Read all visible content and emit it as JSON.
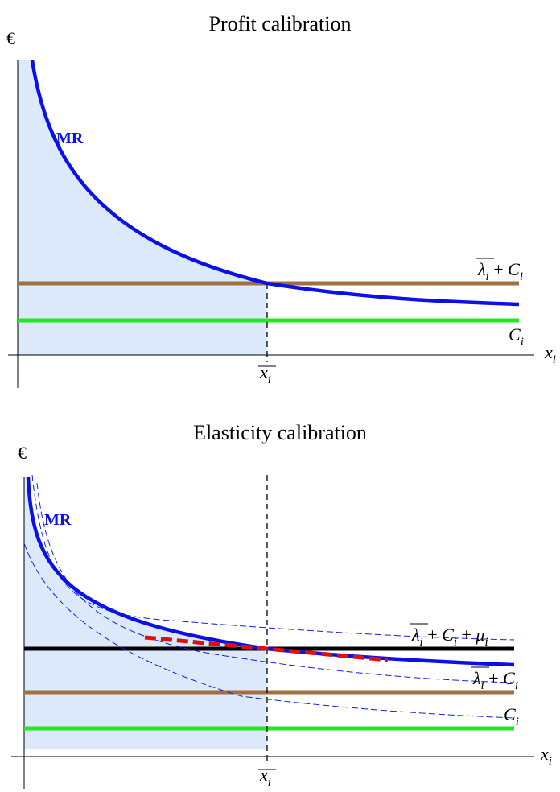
{
  "colors": {
    "mr_curve": "#0b10e8",
    "fill_area": "#dbe9fa",
    "brown_line": "#a07040",
    "green_line": "#22e822",
    "black_line": "#000000",
    "red_dashed": "#e01010",
    "thin_dashed": "#1020e0"
  },
  "top": {
    "title": "Profit calibration",
    "y_axis_label": "€",
    "x_axis_label": "x",
    "x_axis_subscript": "i",
    "mr_label": "MR",
    "x_bar_label": "x",
    "x_bar_subscript": "i",
    "upper_line_label": {
      "lambda": "λ",
      "lambda_sub": "i",
      "plus": " + ",
      "c": "C",
      "c_sub": "i"
    },
    "lower_line_label": {
      "c": "C",
      "c_sub": "i"
    }
  },
  "bottom": {
    "title": "Elasticity calibration",
    "y_axis_label": "€",
    "x_axis_label": "x",
    "x_axis_subscript": "i",
    "mr_label": "MR",
    "x_bar_label": "x",
    "x_bar_subscript": "i",
    "top_line_label": {
      "lambda": "λ",
      "lambda_sub": "i",
      "plus1": " + ",
      "c": "C",
      "c_sub": "i",
      "plus2": " + ",
      "mu": "μ",
      "mu_sub": "i"
    },
    "mid_line_label": {
      "lambda": "λ",
      "lambda_sub": "i",
      "plus": " + ",
      "c": "C",
      "c_sub": "i"
    },
    "low_line_label": {
      "c": "C",
      "c_sub": "i"
    }
  }
}
